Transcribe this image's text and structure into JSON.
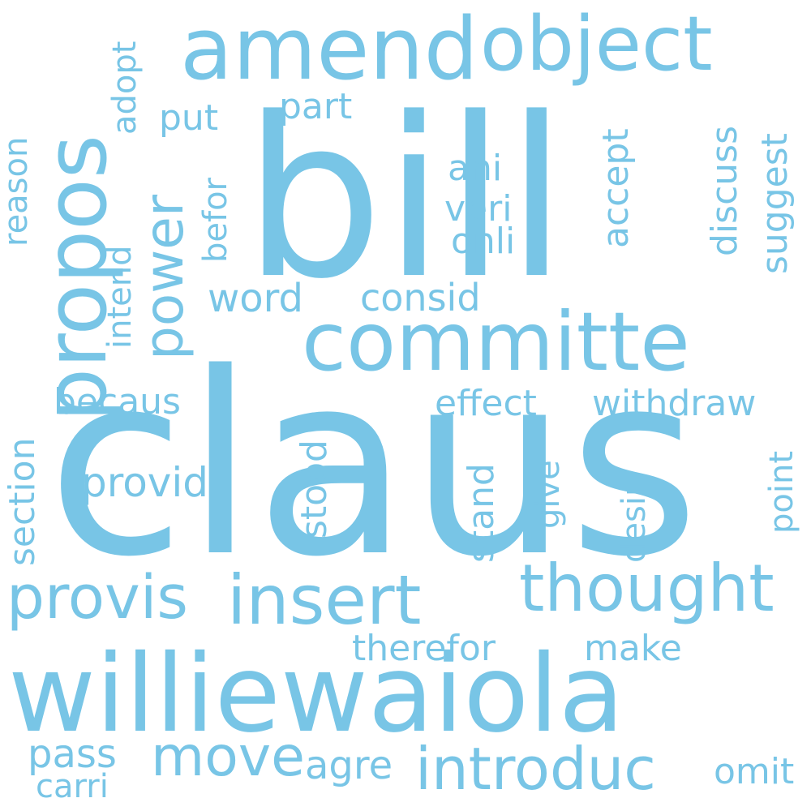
{
  "word_cloud": {
    "color": "#78c5e6",
    "words": [
      {
        "text": "claus"
      },
      {
        "text": "bill"
      },
      {
        "text": "williewaiola"
      },
      {
        "text": "amend"
      },
      {
        "text": "object"
      },
      {
        "text": "propos"
      },
      {
        "text": "committe"
      },
      {
        "text": "power"
      },
      {
        "text": "provis"
      },
      {
        "text": "insert"
      },
      {
        "text": "thought"
      },
      {
        "text": "introduc"
      },
      {
        "text": "move"
      },
      {
        "text": "effect"
      },
      {
        "text": "withdraw"
      },
      {
        "text": "consid"
      },
      {
        "text": "word"
      },
      {
        "text": "provid"
      },
      {
        "text": "becaus"
      },
      {
        "text": "therefor"
      },
      {
        "text": "make"
      },
      {
        "text": "agre"
      },
      {
        "text": "pass"
      },
      {
        "text": "carri"
      },
      {
        "text": "omit"
      },
      {
        "text": "part"
      },
      {
        "text": "put"
      },
      {
        "text": "ani"
      },
      {
        "text": "veri"
      },
      {
        "text": "onli"
      },
      {
        "text": "adopt"
      },
      {
        "text": "reason"
      },
      {
        "text": "intend"
      },
      {
        "text": "befor"
      },
      {
        "text": "accept"
      },
      {
        "text": "discuss"
      },
      {
        "text": "suggest"
      },
      {
        "text": "section"
      },
      {
        "text": "stood"
      },
      {
        "text": "stand"
      },
      {
        "text": "give"
      },
      {
        "text": "desir"
      },
      {
        "text": "point"
      }
    ]
  }
}
